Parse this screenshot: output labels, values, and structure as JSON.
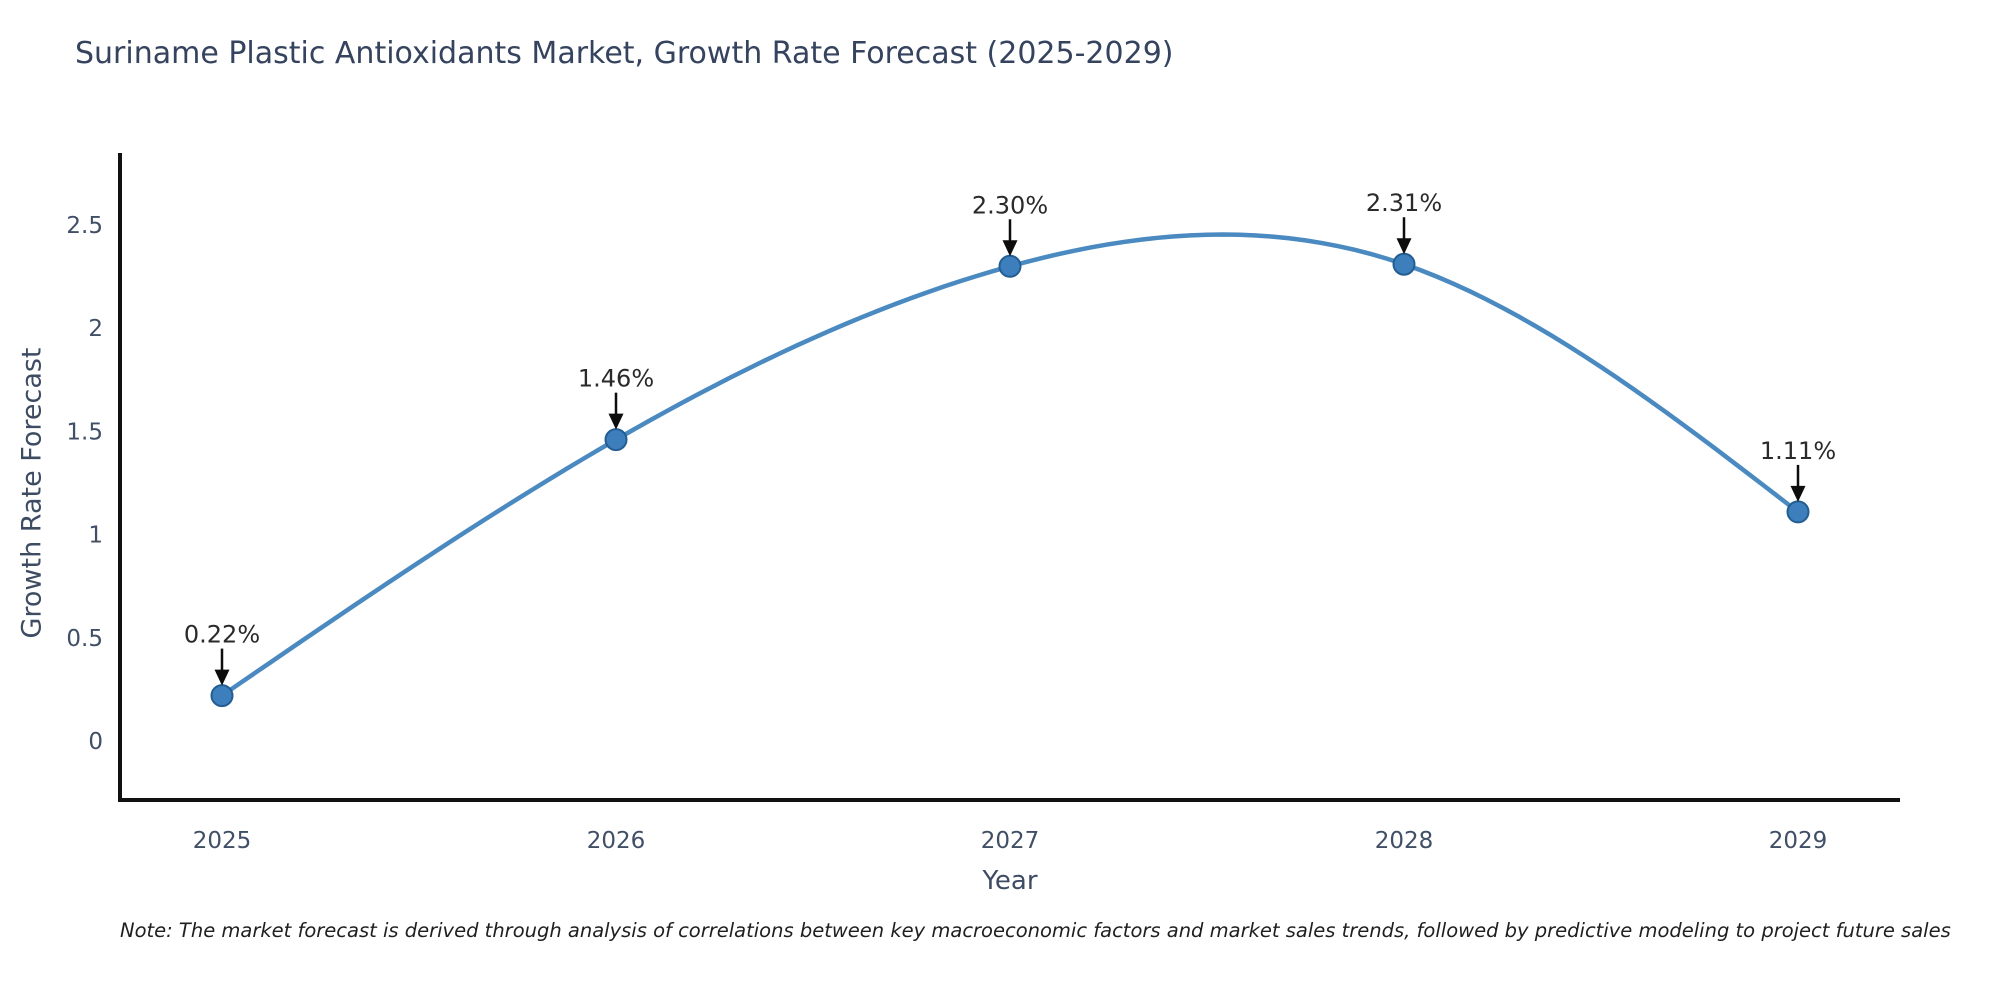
{
  "title": "Suriname Plastic Antioxidants Market, Growth Rate Forecast (2025-2029)",
  "note": "Note: The market forecast is derived through analysis of correlations between key macroeconomic factors and market sales trends, followed by predictive modeling to project future sales",
  "chart_data": {
    "type": "line",
    "title": "Suriname Plastic Antioxidants Market, Growth Rate Forecast (2025-2029)",
    "x": [
      2025,
      2026,
      2027,
      2028,
      2029
    ],
    "values": [
      0.22,
      1.46,
      2.3,
      2.31,
      1.11
    ],
    "point_labels": [
      "0.22%",
      "1.46%",
      "2.30%",
      "2.31%",
      "1.11%"
    ],
    "xtick_labels": [
      "2025",
      "2026",
      "2027",
      "2028",
      "2029"
    ],
    "ytick_values": [
      0,
      0.5,
      1,
      1.5,
      2,
      2.5
    ],
    "ytick_labels": [
      "0",
      "0.5",
      "1",
      "1.5",
      "2",
      "2.5"
    ],
    "xlabel": "Year",
    "ylabel": "Growth Rate Forecast",
    "ylim": [
      -0.29,
      2.84
    ],
    "grid": false,
    "legend": null,
    "line_style": "smooth-spline",
    "marker_style": "circle",
    "annotation_style": "value-label-with-down-arrow",
    "colors": {
      "line": "#4a8ac1",
      "marker_fill": "#3d7fbd",
      "marker_edge": "#235d92",
      "arrow": "#0d0d0d",
      "annotation_text": "#2a2a2a",
      "title_text": "#35435e",
      "axis_label_text": "#3e4c63",
      "tick_text": "#404f66",
      "axis_spine": "#111111",
      "background": "#ffffff"
    }
  }
}
